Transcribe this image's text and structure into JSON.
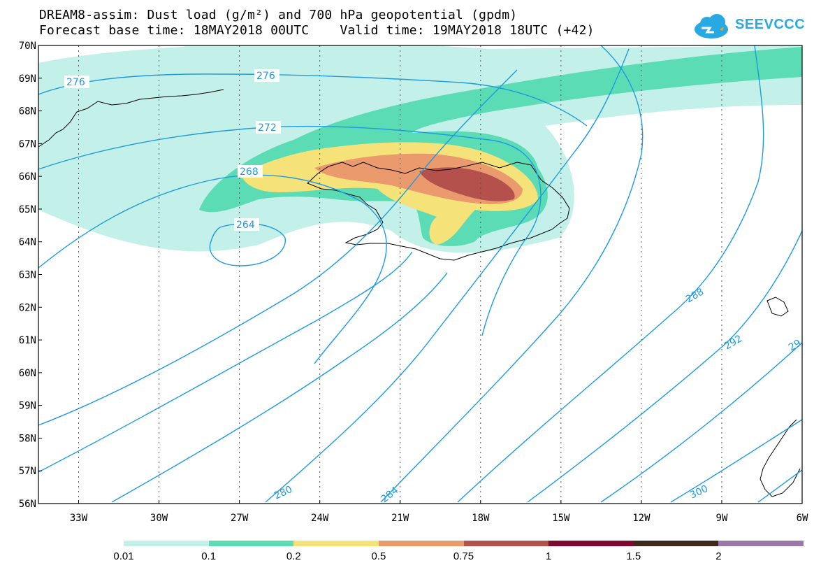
{
  "title": {
    "line1": "DREAM8-assim: Dust load (g/m²) and 700 hPa geopotential (gpdm)",
    "line2": "Forecast base time: 18MAY2018 00UTC    Valid time: 19MAY2018 18UTC (+42)"
  },
  "logo": {
    "text": "SEEVCCC",
    "icon": "cloud-icon",
    "color": "#29a9e1"
  },
  "axes": {
    "lat_labels": [
      "70N",
      "69N",
      "68N",
      "67N",
      "66N",
      "65N",
      "64N",
      "63N",
      "62N",
      "61N",
      "60N",
      "59N",
      "58N",
      "57N",
      "56N"
    ],
    "lon_labels": [
      "33W",
      "30W",
      "27W",
      "24W",
      "21W",
      "18W",
      "15W",
      "12W",
      "9W",
      "6W"
    ],
    "lat_range": [
      56,
      70
    ],
    "lon_range": [
      -34.5,
      -6
    ]
  },
  "contours": {
    "color": "#1e9be0",
    "labels": [
      "276",
      "276",
      "272",
      "268",
      "264",
      "280",
      "284",
      "288",
      "292",
      "29",
      "300"
    ]
  },
  "colorbar": {
    "colors": [
      "#c3f0e8",
      "#5cdcb4",
      "#f5e37a",
      "#ea9a6c",
      "#b5514d",
      "#7e0a32",
      "#3d2a1c",
      "#9a78a8"
    ],
    "labels": [
      "0.01",
      "0.1",
      "0.2",
      "0.5",
      "0.75",
      "1",
      "1.5",
      "2"
    ]
  }
}
